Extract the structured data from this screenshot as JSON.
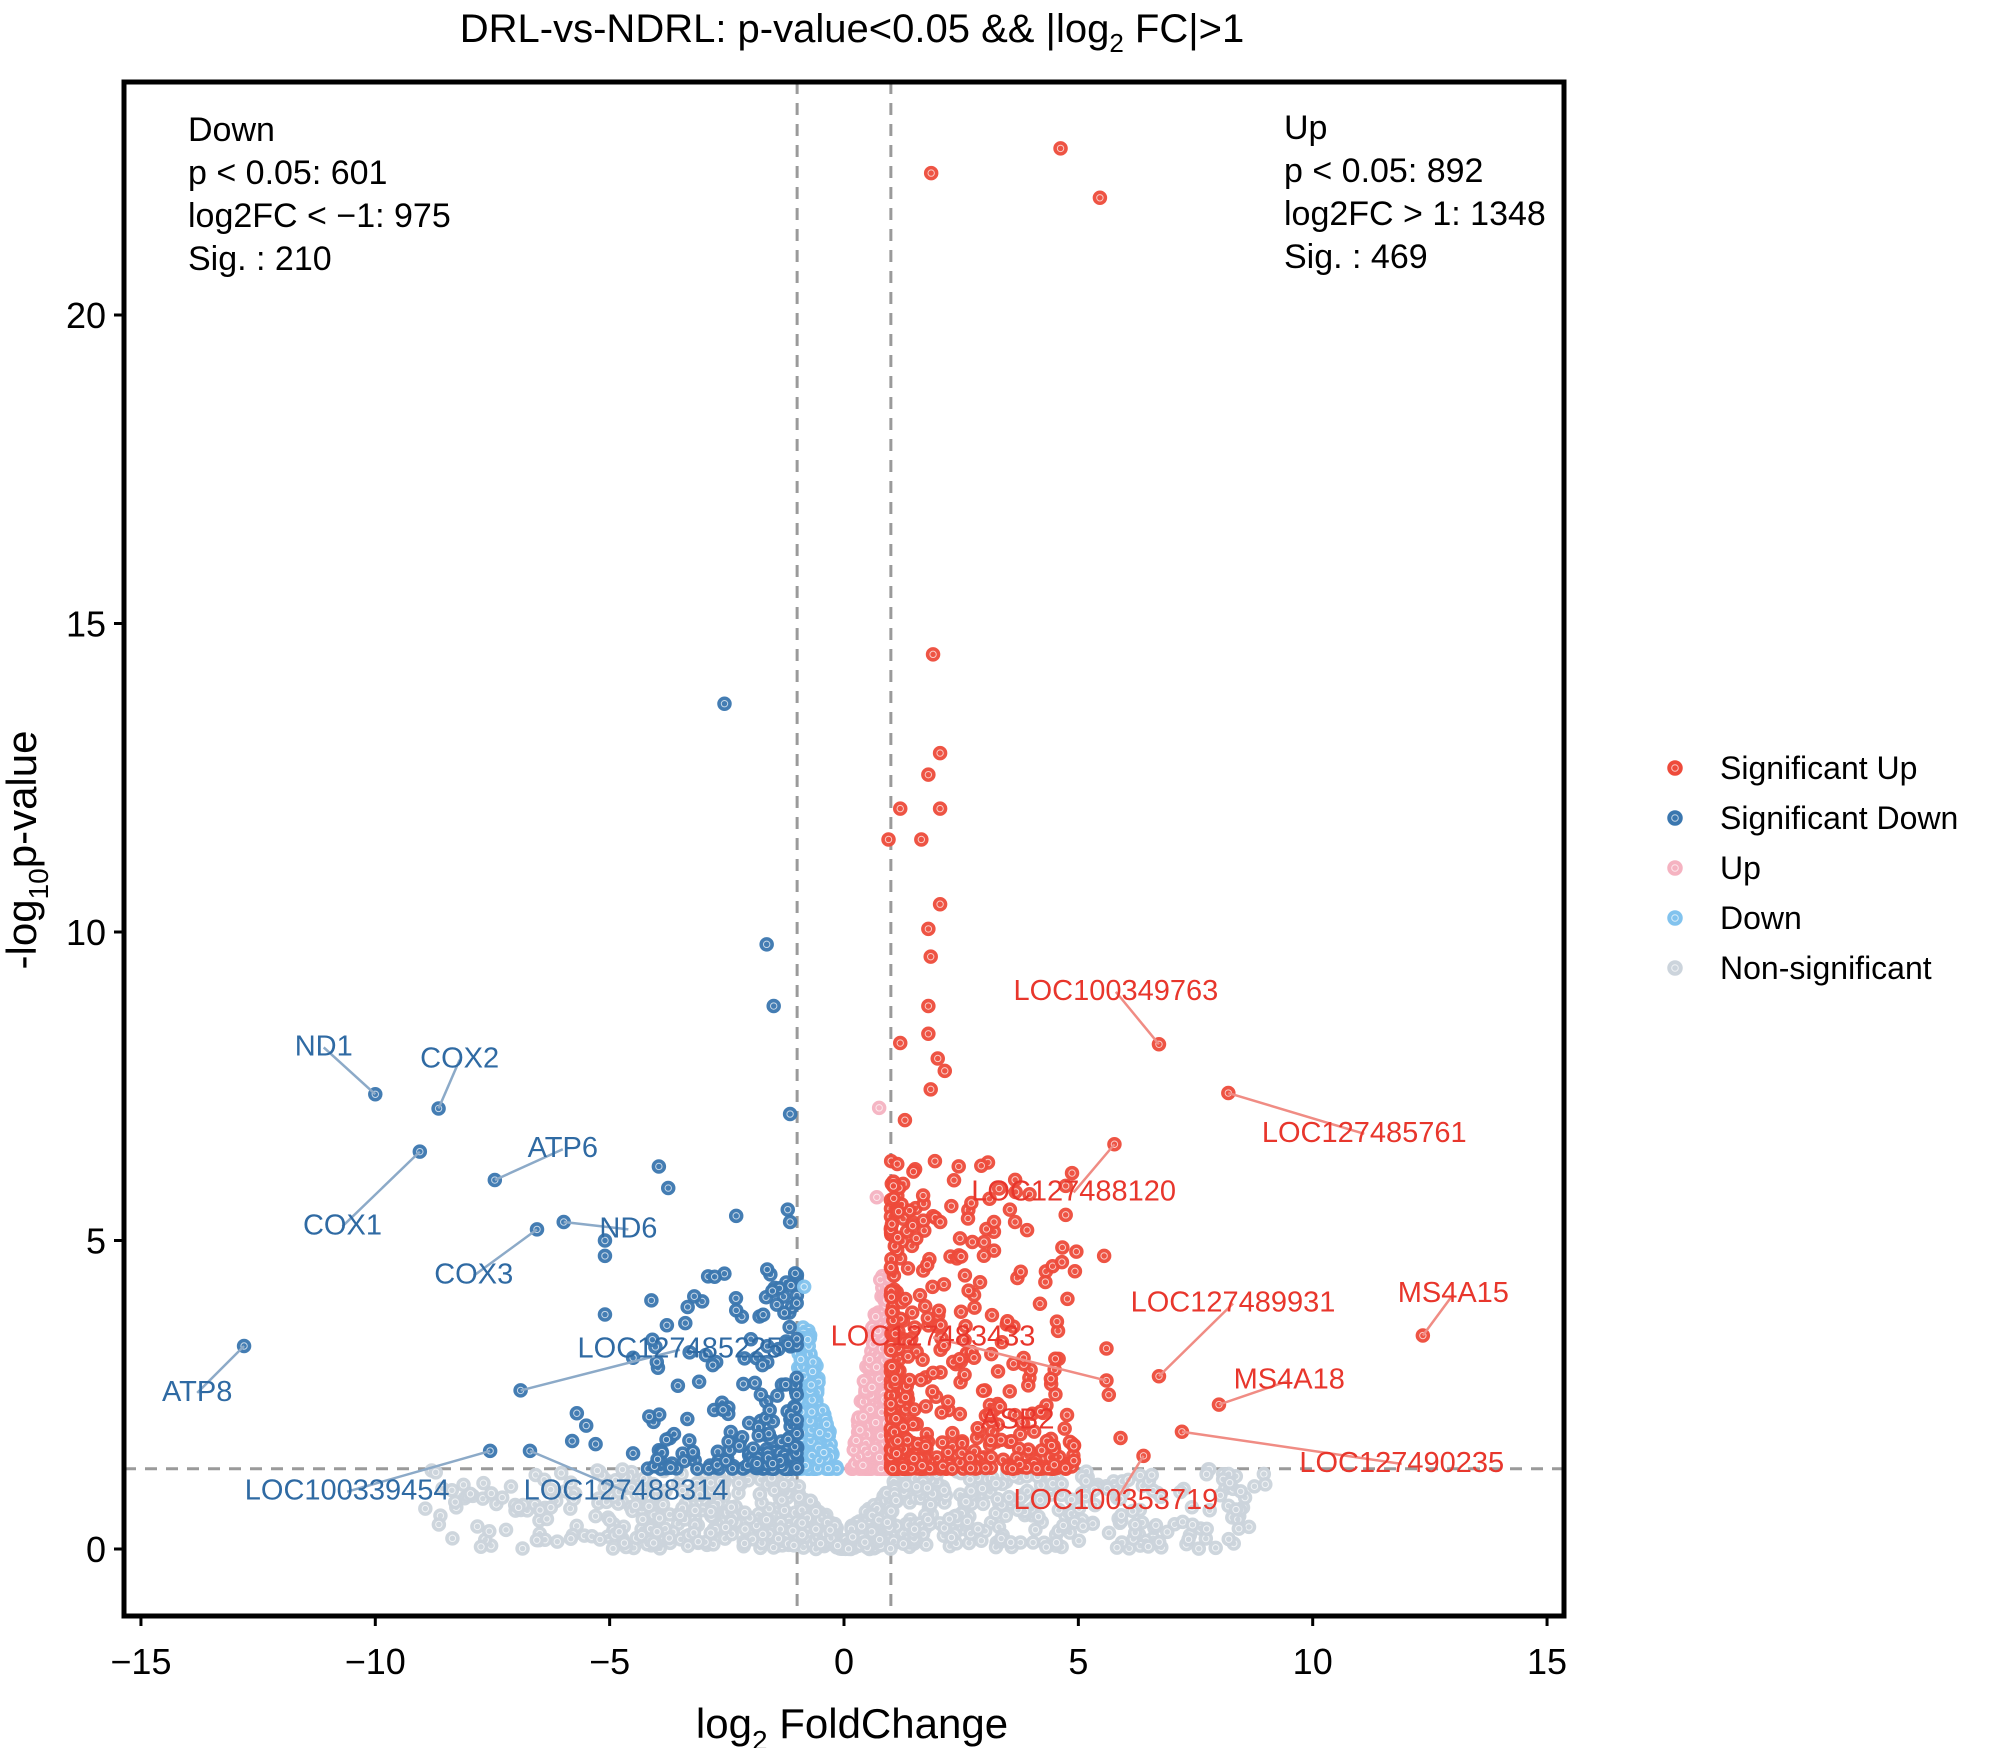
{
  "chart_data": {
    "type": "scatter",
    "title_main": "DRL-vs-NDRL: p-value<0.05 && |log",
    "title_sub": "2",
    "title_tail": " FC|>1",
    "xlabel_main": "log",
    "xlabel_sub": "2",
    "xlabel_tail": " FoldChange",
    "ylabel_pre": "-log",
    "ylabel_sub": "10",
    "ylabel_tail": "p-value",
    "xlim": [
      -15.6,
      15.3
    ],
    "ylim": [
      -1.1,
      23.6
    ],
    "xticks": [
      -15,
      -10,
      -5,
      0,
      5,
      10,
      15
    ],
    "xtick_labels": [
      "−15",
      "−10",
      "−5",
      "0",
      "5",
      "10",
      "15"
    ],
    "yticks": [
      0,
      5,
      10,
      15,
      20
    ],
    "ytick_labels": [
      "0",
      "5",
      "10",
      "15",
      "20"
    ],
    "thresholds": {
      "log2fc": [
        -1,
        1
      ],
      "neg_log10_p": 1.3
    },
    "legend_position": "right",
    "colors": {
      "sig_up": "#EE4B3B",
      "sig_down": "#3B77AF",
      "up": "#F5B3C1",
      "down": "#82C3EE",
      "nonsig": "#CCD4DC"
    },
    "legend": [
      {
        "key": "sig_up",
        "label": "Significant Up"
      },
      {
        "key": "sig_down",
        "label": "Significant Down"
      },
      {
        "key": "up",
        "label": "Up"
      },
      {
        "key": "down",
        "label": "Down"
      },
      {
        "key": "nonsig",
        "label": "Non-significant"
      }
    ],
    "annotations": {
      "down": [
        "Down",
        "p < 0.05: 601",
        "log2FC < −1: 975",
        "Sig. : 210"
      ],
      "up": [
        "Up",
        "p < 0.05: 892",
        "log2FC > 1: 1348",
        "Sig. : 469"
      ]
    },
    "labeled_points": [
      {
        "gene": "ND1",
        "x": -10.0,
        "y": 7.37,
        "group": "sig_down",
        "lx": -11.1,
        "ly": 8.0
      },
      {
        "gene": "COX2",
        "x": -8.65,
        "y": 7.14,
        "group": "sig_down",
        "lx": -8.2,
        "ly": 7.8
      },
      {
        "gene": "COX1",
        "x": -9.05,
        "y": 6.44,
        "group": "sig_down",
        "lx": -10.7,
        "ly": 5.1
      },
      {
        "gene": "ATP6",
        "x": -7.45,
        "y": 5.98,
        "group": "sig_down",
        "lx": -6.0,
        "ly": 6.35
      },
      {
        "gene": "ND6",
        "x": -5.98,
        "y": 5.3,
        "group": "sig_down",
        "lx": -4.6,
        "ly": 5.05
      },
      {
        "gene": "COX3",
        "x": -6.55,
        "y": 5.18,
        "group": "sig_down",
        "lx": -7.9,
        "ly": 4.3
      },
      {
        "gene": "ATP8",
        "x": -12.8,
        "y": 3.29,
        "group": "sig_down",
        "lx": -13.8,
        "ly": 2.4
      },
      {
        "gene": "LOC127485225",
        "x": -6.9,
        "y": 2.57,
        "group": "sig_down",
        "lx": -3.5,
        "ly": 3.1
      },
      {
        "gene": "LOC100339454",
        "x": -7.55,
        "y": 1.59,
        "group": "sig_down",
        "lx": -10.6,
        "ly": 0.8
      },
      {
        "gene": "LOC127488314",
        "x": -6.7,
        "y": 1.59,
        "group": "sig_down",
        "lx": -4.65,
        "ly": 0.8
      },
      {
        "gene": "LOC100349763",
        "x": 6.72,
        "y": 8.18,
        "group": "sig_up",
        "lx": 5.8,
        "ly": 8.9
      },
      {
        "gene": "LOC127485761",
        "x": 8.2,
        "y": 7.39,
        "group": "sig_up",
        "lx": 11.1,
        "ly": 6.6
      },
      {
        "gene": "LOC127488120",
        "x": 5.77,
        "y": 6.56,
        "group": "sig_up",
        "lx": 4.9,
        "ly": 5.65
      },
      {
        "gene": "LOC127483433",
        "x": 5.6,
        "y": 2.73,
        "group": "sig_up",
        "lx": 1.9,
        "ly": 3.3
      },
      {
        "gene": "LOC127489931",
        "x": 6.72,
        "y": 2.8,
        "group": "sig_up",
        "lx": 8.3,
        "ly": 3.85
      },
      {
        "gene": "MS4A15",
        "x": 12.35,
        "y": 3.46,
        "group": "sig_up",
        "lx": 13.0,
        "ly": 4.0
      },
      {
        "gene": "MS4A18",
        "x": 8.0,
        "y": 2.34,
        "group": "sig_up",
        "lx": 9.5,
        "ly": 2.6
      },
      {
        "gene": "ASB2",
        "x": 3.8,
        "y": 2.05,
        "group": "sig_up",
        "lx": 3.7,
        "ly": 1.95
      },
      {
        "gene": "LOC127490235",
        "x": 7.21,
        "y": 1.9,
        "group": "sig_up",
        "lx": 11.9,
        "ly": 1.25
      },
      {
        "gene": "LOC100353719",
        "x": 6.39,
        "y": 1.51,
        "group": "sig_up",
        "lx": 5.8,
        "ly": 0.65
      }
    ],
    "extra_points": [
      {
        "x": 1.86,
        "y": 22.3,
        "group": "sig_up"
      },
      {
        "x": 4.62,
        "y": 22.7,
        "group": "sig_up"
      },
      {
        "x": 5.46,
        "y": 21.9,
        "group": "sig_up"
      },
      {
        "x": 1.9,
        "y": 14.5,
        "group": "sig_up"
      },
      {
        "x": 2.05,
        "y": 12.9,
        "group": "sig_up"
      },
      {
        "x": 1.8,
        "y": 12.55,
        "group": "sig_up"
      },
      {
        "x": 1.2,
        "y": 12.0,
        "group": "sig_up"
      },
      {
        "x": 2.05,
        "y": 12.0,
        "group": "sig_up"
      },
      {
        "x": 0.95,
        "y": 11.5,
        "group": "sig_up"
      },
      {
        "x": 1.65,
        "y": 11.5,
        "group": "sig_up"
      },
      {
        "x": 2.05,
        "y": 10.45,
        "group": "sig_up"
      },
      {
        "x": 1.8,
        "y": 10.05,
        "group": "sig_up"
      },
      {
        "x": 1.85,
        "y": 9.6,
        "group": "sig_up"
      },
      {
        "x": 1.8,
        "y": 8.8,
        "group": "sig_up"
      },
      {
        "x": 1.2,
        "y": 8.2,
        "group": "sig_up"
      },
      {
        "x": 1.8,
        "y": 8.35,
        "group": "sig_up"
      },
      {
        "x": 2.0,
        "y": 7.95,
        "group": "sig_up"
      },
      {
        "x": 2.15,
        "y": 7.75,
        "group": "sig_up"
      },
      {
        "x": 1.85,
        "y": 7.45,
        "group": "sig_up"
      },
      {
        "x": 1.3,
        "y": 6.95,
        "group": "sig_up"
      },
      {
        "x": 5.55,
        "y": 4.75,
        "group": "sig_up"
      },
      {
        "x": 5.6,
        "y": 3.25,
        "group": "sig_up"
      },
      {
        "x": 5.65,
        "y": 2.5,
        "group": "sig_up"
      },
      {
        "x": 5.9,
        "y": 1.8,
        "group": "sig_up"
      },
      {
        "x": 3.2,
        "y": 5.3,
        "group": "sig_up"
      },
      {
        "x": 3.65,
        "y": 5.3,
        "group": "sig_up"
      },
      {
        "x": -2.55,
        "y": 13.7,
        "group": "sig_down"
      },
      {
        "x": -1.65,
        "y": 9.8,
        "group": "sig_down"
      },
      {
        "x": -1.5,
        "y": 8.8,
        "group": "sig_down"
      },
      {
        "x": -1.15,
        "y": 7.05,
        "group": "sig_down"
      },
      {
        "x": -3.95,
        "y": 6.2,
        "group": "sig_down"
      },
      {
        "x": -3.75,
        "y": 5.85,
        "group": "sig_down"
      },
      {
        "x": -5.1,
        "y": 5.0,
        "group": "sig_down"
      },
      {
        "x": -5.1,
        "y": 4.75,
        "group": "sig_down"
      },
      {
        "x": -5.1,
        "y": 3.8,
        "group": "sig_down"
      },
      {
        "x": -4.5,
        "y": 3.1,
        "group": "sig_down"
      },
      {
        "x": -2.3,
        "y": 5.4,
        "group": "sig_down"
      },
      {
        "x": -1.2,
        "y": 5.5,
        "group": "sig_down"
      },
      {
        "x": -1.15,
        "y": 5.3,
        "group": "sig_down"
      },
      {
        "x": -5.7,
        "y": 2.2,
        "group": "sig_down"
      },
      {
        "x": -5.5,
        "y": 2.0,
        "group": "sig_down"
      },
      {
        "x": -5.8,
        "y": 1.75,
        "group": "sig_down"
      },
      {
        "x": -5.3,
        "y": 1.7,
        "group": "sig_down"
      },
      {
        "x": -4.5,
        "y": 1.55,
        "group": "sig_down"
      },
      {
        "x": -0.85,
        "y": 4.25,
        "group": "down"
      },
      {
        "x": 0.75,
        "y": 7.15,
        "group": "up"
      },
      {
        "x": 0.7,
        "y": 5.7,
        "group": "up"
      }
    ],
    "clusters": [
      {
        "group": "nonsig",
        "count": 900,
        "xmin": -5.5,
        "xmax": 9.0,
        "ymin": 0.0,
        "ymax": 1.3,
        "shape": "funnel"
      },
      {
        "group": "down",
        "count": 220,
        "xmin": -1.0,
        "xmax": -0.15,
        "ymin": 1.3,
        "ymax": 3.6,
        "shape": "inner"
      },
      {
        "group": "up",
        "count": 220,
        "xmin": 0.15,
        "xmax": 1.0,
        "ymin": 1.3,
        "ymax": 4.5,
        "shape": "inner"
      },
      {
        "group": "sig_down",
        "count": 210,
        "xmin": -4.2,
        "xmax": -1.0,
        "ymin": 1.3,
        "ymax": 4.6,
        "shape": "tail"
      },
      {
        "group": "sig_up",
        "count": 469,
        "xmin": 1.0,
        "xmax": 5.0,
        "ymin": 1.3,
        "ymax": 6.4,
        "shape": "tail"
      }
    ]
  }
}
